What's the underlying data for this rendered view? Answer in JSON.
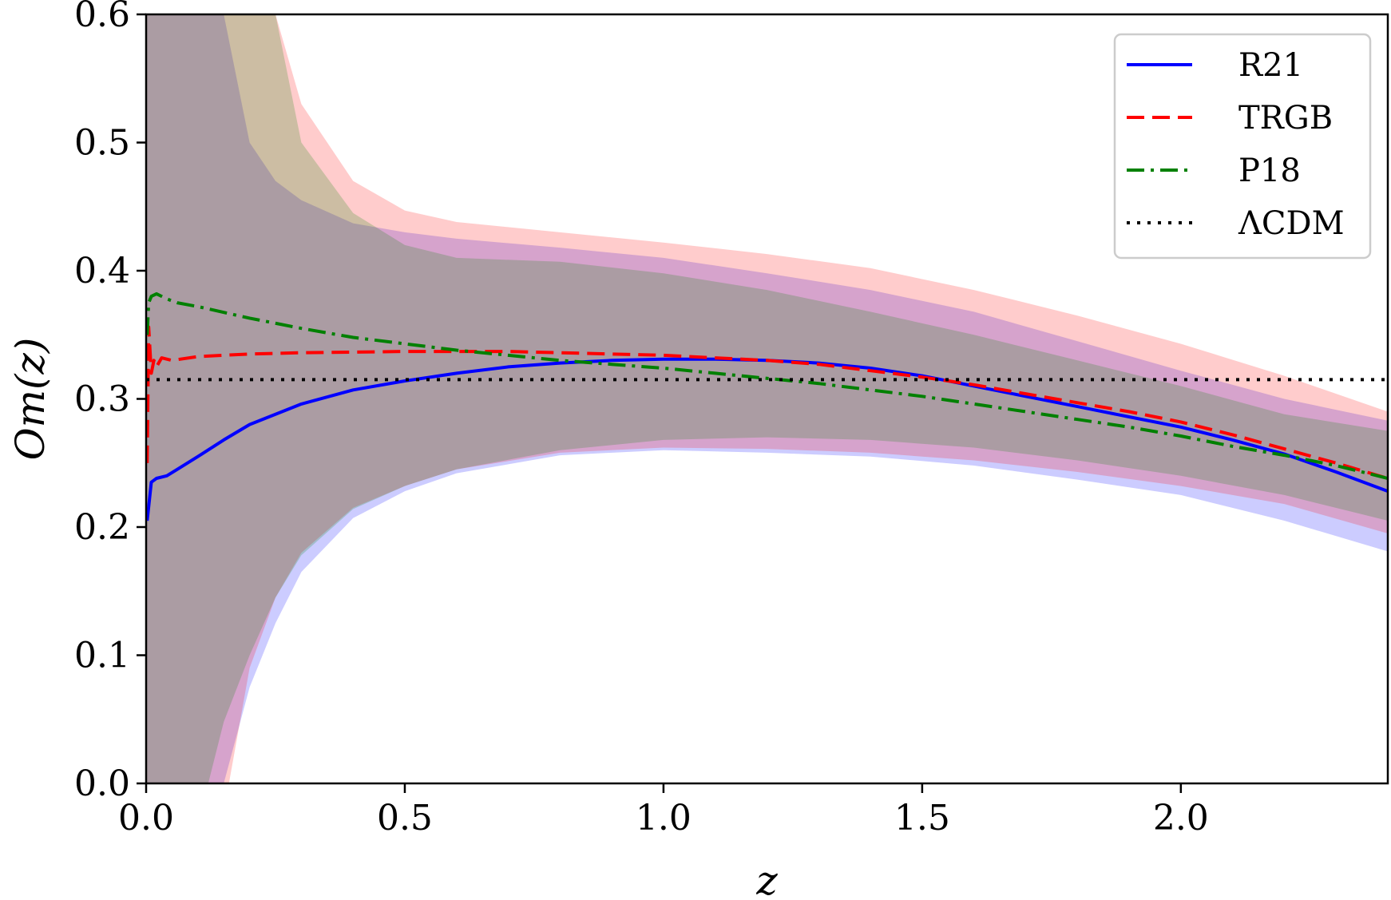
{
  "chart_data": {
    "type": "line",
    "xlabel": "z",
    "ylabel": "Om(z)",
    "xlim": [
      0,
      2.4
    ],
    "ylim": [
      0,
      0.6
    ],
    "xticks": [
      "0.0",
      "0.5",
      "1.0",
      "1.5",
      "2.0"
    ],
    "xtick_values": [
      0,
      0.5,
      1.0,
      1.5,
      2.0
    ],
    "yticks": [
      "0.0",
      "0.1",
      "0.2",
      "0.3",
      "0.4",
      "0.5",
      "0.6"
    ],
    "ytick_values": [
      0,
      0.1,
      0.2,
      0.3,
      0.4,
      0.5,
      0.6
    ],
    "legend_position": "top-right",
    "bands": [
      {
        "name": "R21",
        "color": "#0000ff",
        "opacity": 0.2,
        "x": [
          0.0,
          0.05,
          0.1,
          0.12,
          0.15,
          0.2,
          0.25,
          0.3,
          0.4,
          0.5,
          0.6,
          0.8,
          1.0,
          1.2,
          1.4,
          1.6,
          1.8,
          2.0,
          2.2,
          2.4
        ],
        "lower": [
          null,
          null,
          null,
          null,
          0.0,
          0.075,
          0.125,
          0.165,
          0.207,
          0.228,
          0.242,
          0.256,
          0.26,
          0.258,
          0.255,
          0.248,
          0.237,
          0.225,
          0.205,
          0.181
        ],
        "upper": [
          0.6,
          0.6,
          0.6,
          0.6,
          0.6,
          0.5,
          0.47,
          0.455,
          0.437,
          0.43,
          0.425,
          0.418,
          0.41,
          0.398,
          0.385,
          0.368,
          0.345,
          0.322,
          0.3,
          0.283
        ]
      },
      {
        "name": "TRGB",
        "color": "#ff0000",
        "opacity": 0.2,
        "x": [
          0.0,
          0.05,
          0.1,
          0.14,
          0.16,
          0.2,
          0.25,
          0.3,
          0.4,
          0.5,
          0.6,
          0.8,
          1.0,
          1.2,
          1.4,
          1.6,
          1.8,
          2.0,
          2.2,
          2.4
        ],
        "lower": [
          null,
          null,
          null,
          null,
          0.0,
          0.09,
          0.145,
          0.18,
          0.215,
          0.232,
          0.245,
          0.258,
          0.262,
          0.261,
          0.258,
          0.252,
          0.243,
          0.232,
          0.218,
          0.195
        ],
        "upper": [
          0.6,
          0.6,
          0.6,
          0.6,
          0.6,
          0.6,
          0.6,
          0.53,
          0.47,
          0.447,
          0.438,
          0.43,
          0.422,
          0.413,
          0.402,
          0.385,
          0.365,
          0.343,
          0.318,
          0.29
        ]
      },
      {
        "name": "P18",
        "color": "#008000",
        "opacity": 0.2,
        "x": [
          0.0,
          0.05,
          0.1,
          0.12,
          0.15,
          0.2,
          0.25,
          0.3,
          0.4,
          0.5,
          0.6,
          0.8,
          1.0,
          1.2,
          1.4,
          1.6,
          1.8,
          2.0,
          2.2,
          2.4
        ],
        "lower": [
          null,
          null,
          null,
          0.0,
          0.048,
          0.1,
          0.145,
          0.178,
          0.214,
          0.232,
          0.245,
          0.26,
          0.268,
          0.27,
          0.268,
          0.262,
          0.252,
          0.24,
          0.225,
          0.205
        ],
        "upper": [
          0.6,
          0.6,
          0.6,
          0.6,
          0.6,
          0.6,
          0.6,
          0.5,
          0.445,
          0.42,
          0.41,
          0.407,
          0.398,
          0.385,
          0.368,
          0.35,
          0.33,
          0.31,
          0.288,
          0.275
        ]
      }
    ],
    "series": [
      {
        "name": "R21",
        "color": "#0000ff",
        "style": "solid",
        "x": [
          0.002,
          0.01,
          0.02,
          0.04,
          0.06,
          0.1,
          0.15,
          0.2,
          0.3,
          0.4,
          0.5,
          0.6,
          0.7,
          0.8,
          0.9,
          1.0,
          1.1,
          1.2,
          1.3,
          1.4,
          1.5,
          1.6,
          1.7,
          1.8,
          1.9,
          2.0,
          2.1,
          2.2,
          2.3,
          2.4
        ],
        "y": [
          0.205,
          0.235,
          0.238,
          0.24,
          0.245,
          0.255,
          0.268,
          0.28,
          0.296,
          0.307,
          0.314,
          0.32,
          0.325,
          0.328,
          0.33,
          0.331,
          0.331,
          0.33,
          0.328,
          0.324,
          0.318,
          0.31,
          0.302,
          0.294,
          0.286,
          0.278,
          0.268,
          0.257,
          0.243,
          0.228
        ]
      },
      {
        "name": "TRGB",
        "color": "#ff0000",
        "style": "dashed",
        "x": [
          0.002,
          0.005,
          0.01,
          0.015,
          0.02,
          0.03,
          0.05,
          0.1,
          0.2,
          0.3,
          0.5,
          0.7,
          0.9,
          1.0,
          1.1,
          1.2,
          1.3,
          1.4,
          1.5,
          1.6,
          1.7,
          1.8,
          1.9,
          2.0,
          2.1,
          2.2,
          2.3,
          2.4
        ],
        "y": [
          0.25,
          0.356,
          0.32,
          0.33,
          0.325,
          0.332,
          0.33,
          0.333,
          0.335,
          0.336,
          0.337,
          0.337,
          0.335,
          0.334,
          0.332,
          0.33,
          0.327,
          0.322,
          0.317,
          0.311,
          0.304,
          0.297,
          0.29,
          0.282,
          0.272,
          0.261,
          0.25,
          0.238
        ]
      },
      {
        "name": "P18",
        "color": "#008000",
        "style": "dashdot",
        "x": [
          0.002,
          0.005,
          0.01,
          0.02,
          0.04,
          0.06,
          0.1,
          0.2,
          0.3,
          0.4,
          0.5,
          0.6,
          0.7,
          0.8,
          0.9,
          1.0,
          1.1,
          1.2,
          1.3,
          1.4,
          1.5,
          1.6,
          1.7,
          1.8,
          1.9,
          2.0,
          2.1,
          2.2,
          2.3,
          2.4
        ],
        "y": [
          0.35,
          0.375,
          0.38,
          0.382,
          0.378,
          0.375,
          0.372,
          0.363,
          0.355,
          0.348,
          0.343,
          0.338,
          0.334,
          0.33,
          0.327,
          0.324,
          0.32,
          0.316,
          0.312,
          0.307,
          0.302,
          0.296,
          0.29,
          0.284,
          0.278,
          0.271,
          0.263,
          0.256,
          0.248,
          0.238
        ]
      },
      {
        "name": "ΛCDM",
        "color": "#000000",
        "style": "dotted",
        "x": [
          0,
          2.4
        ],
        "y": [
          0.315,
          0.315
        ]
      }
    ]
  }
}
